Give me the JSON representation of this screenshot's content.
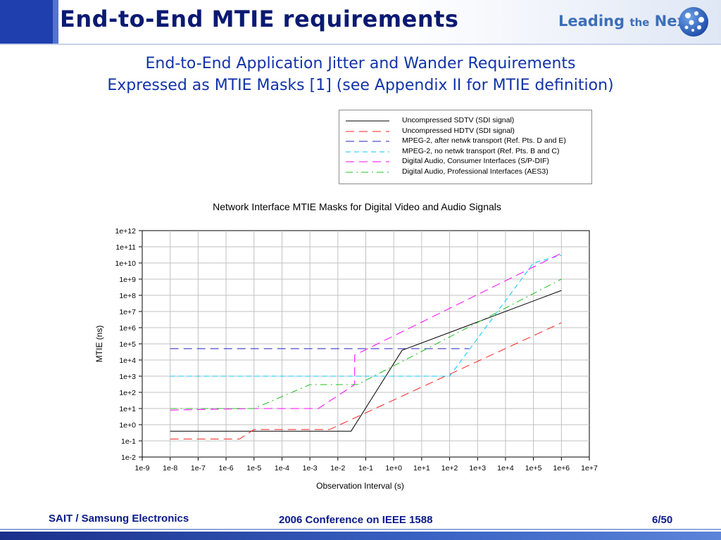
{
  "slide": {
    "title": "End-to-End MTIE requirements",
    "logo": {
      "part1": "Leading ",
      "part2": "the",
      "part3": " Next",
      "ball_icon": "globe-ball-icon"
    },
    "subtitle_line1": "End-to-End Application Jitter and Wander Requirements",
    "subtitle_line2": "Expressed as MTIE Masks [1] (see Appendix II for MTIE definition)",
    "footer_left": "SAIT / Samsung Electronics",
    "footer_center": "2006 Conference on IEEE 1588",
    "footer_right": "6/50",
    "colors": {
      "title": "#0a1a72",
      "subtitle": "#1233a8",
      "accent": "#1f3fae",
      "logo": "#3d6eb8"
    }
  },
  "chart_data": {
    "type": "line",
    "title": "Network Interface MTIE Masks for Digital Video and Audio Signals",
    "xlabel": "Observation Interval (s)",
    "ylabel": "MTIE (ns)",
    "x_scale": "log",
    "y_scale": "log",
    "xlim": [
      1e-09,
      10000000.0
    ],
    "ylim": [
      0.01,
      1000000000000.0
    ],
    "x_tick_labels": [
      "1e-9",
      "1e-8",
      "1e-7",
      "1e-6",
      "1e-5",
      "1e-4",
      "1e-3",
      "1e-2",
      "1e-1",
      "1e+0",
      "1e+1",
      "1e+2",
      "1e+3",
      "1e+4",
      "1e+5",
      "1e+6",
      "1e+7"
    ],
    "y_tick_labels": [
      "1e-2",
      "1e-1",
      "1e+0",
      "1e+1",
      "1e+2",
      "1e+3",
      "1e+4",
      "1e+5",
      "1e+6",
      "1e+7",
      "1e+8",
      "1e+9",
      "1e+10",
      "1e+11",
      "1e+12"
    ],
    "grid": true,
    "legend_position": "top-right, above plot",
    "series": [
      {
        "name": "Uncompressed SDTV (SDI signal)",
        "color": "#000000",
        "dash": "solid",
        "x": [
          1e-08,
          0.03,
          2,
          1000000.0
        ],
        "y": [
          0.4,
          0.4,
          40000,
          200000000.0
        ]
      },
      {
        "name": "Uncompressed HDTV (SDI signal)",
        "color": "#ff2020",
        "dash": "long",
        "x": [
          1e-08,
          3e-06,
          1e-05,
          0.005,
          1000000.0
        ],
        "y": [
          0.13,
          0.13,
          0.5,
          0.5,
          2000000.0
        ]
      },
      {
        "name": "MPEG-2, after netwk transport (Ref. Pts. D and E)",
        "color": "#2020c0",
        "dash": "long",
        "x": [
          1e-08,
          500
        ],
        "y": [
          50000,
          50000
        ]
      },
      {
        "name": "MPEG-2, no netwk transport (Ref. Pts. B and C)",
        "color": "#00c8ff",
        "dash": "dash",
        "x": [
          1e-08,
          10,
          100,
          100000.0,
          1000000.0
        ],
        "y": [
          1000,
          1000,
          1000,
          10000000000.0,
          30000000000.0
        ]
      },
      {
        "name": "Digital Audio, Consumer Interfaces (S/P-DIF)",
        "color": "#ff00ff",
        "dash": "long",
        "x": [
          1e-08,
          1e-05,
          0.002,
          0.04,
          0.04,
          1000000.0
        ],
        "y": [
          8,
          10,
          10,
          300,
          20000,
          40000000000.0
        ]
      },
      {
        "name": "Digital Audio, Professional Interfaces (AES3)",
        "color": "#20c020",
        "dash": "dashdot",
        "x": [
          1e-08,
          1e-05,
          0.001,
          0.05,
          1000000.0
        ],
        "y": [
          10,
          10,
          300,
          300,
          1000000000.0
        ]
      }
    ]
  }
}
